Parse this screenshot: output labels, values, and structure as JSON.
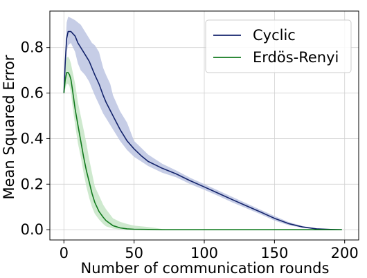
{
  "chart_data": {
    "type": "line",
    "xlabel": "Number of communication rounds",
    "ylabel": "Mean Squared Error",
    "xlim": [
      -10,
      210
    ],
    "ylim": [
      -0.045,
      0.96
    ],
    "xticks": [
      0,
      50,
      100,
      150,
      200
    ],
    "yticks": [
      0.0,
      0.2,
      0.4,
      0.6,
      0.8
    ],
    "xtick_labels": [
      "0",
      "50",
      "100",
      "150",
      "200"
    ],
    "ytick_labels": [
      "0.0",
      "0.2",
      "0.4",
      "0.6",
      "0.8"
    ],
    "grid": true,
    "legend_position": "top-right",
    "series": [
      {
        "name": "Cyclic",
        "color": "#13236b",
        "band_color": "#b8c0e0",
        "points": [
          [
            0,
            0.6
          ],
          [
            1,
            0.74
          ],
          [
            2,
            0.84
          ],
          [
            3,
            0.87
          ],
          [
            5,
            0.87
          ],
          [
            8,
            0.85
          ],
          [
            10,
            0.82
          ],
          [
            12,
            0.8
          ],
          [
            15,
            0.77
          ],
          [
            18,
            0.74
          ],
          [
            20,
            0.71
          ],
          [
            22,
            0.68
          ],
          [
            25,
            0.64
          ],
          [
            28,
            0.59
          ],
          [
            30,
            0.56
          ],
          [
            35,
            0.5
          ],
          [
            40,
            0.44
          ],
          [
            45,
            0.39
          ],
          [
            50,
            0.355
          ],
          [
            55,
            0.325
          ],
          [
            60,
            0.3
          ],
          [
            70,
            0.27
          ],
          [
            80,
            0.245
          ],
          [
            90,
            0.215
          ],
          [
            100,
            0.188
          ],
          [
            110,
            0.16
          ],
          [
            120,
            0.132
          ],
          [
            130,
            0.105
          ],
          [
            140,
            0.078
          ],
          [
            150,
            0.05
          ],
          [
            160,
            0.027
          ],
          [
            170,
            0.012
          ],
          [
            180,
            0.004
          ],
          [
            190,
            0.001
          ],
          [
            198,
            0.0
          ]
        ],
        "upper": [
          [
            0,
            0.6
          ],
          [
            1,
            0.8
          ],
          [
            2,
            0.91
          ],
          [
            3,
            0.935
          ],
          [
            5,
            0.93
          ],
          [
            8,
            0.92
          ],
          [
            10,
            0.91
          ],
          [
            12,
            0.9
          ],
          [
            15,
            0.87
          ],
          [
            18,
            0.84
          ],
          [
            20,
            0.82
          ],
          [
            22,
            0.81
          ],
          [
            25,
            0.78
          ],
          [
            28,
            0.71
          ],
          [
            30,
            0.68
          ],
          [
            33,
            0.64
          ],
          [
            35,
            0.59
          ],
          [
            40,
            0.52
          ],
          [
            45,
            0.47
          ],
          [
            50,
            0.39
          ],
          [
            55,
            0.36
          ],
          [
            60,
            0.33
          ],
          [
            70,
            0.29
          ],
          [
            80,
            0.26
          ],
          [
            90,
            0.228
          ],
          [
            100,
            0.2
          ],
          [
            110,
            0.172
          ],
          [
            120,
            0.144
          ],
          [
            130,
            0.116
          ],
          [
            140,
            0.088
          ],
          [
            150,
            0.06
          ],
          [
            160,
            0.034
          ],
          [
            170,
            0.016
          ],
          [
            180,
            0.006
          ],
          [
            190,
            0.002
          ],
          [
            198,
            0.0
          ]
        ],
        "lower": [
          [
            0,
            0.6
          ],
          [
            1,
            0.68
          ],
          [
            2,
            0.78
          ],
          [
            3,
            0.81
          ],
          [
            5,
            0.82
          ],
          [
            8,
            0.78
          ],
          [
            10,
            0.73
          ],
          [
            12,
            0.7
          ],
          [
            15,
            0.68
          ],
          [
            18,
            0.65
          ],
          [
            20,
            0.62
          ],
          [
            22,
            0.59
          ],
          [
            25,
            0.55
          ],
          [
            28,
            0.51
          ],
          [
            30,
            0.49
          ],
          [
            35,
            0.44
          ],
          [
            40,
            0.39
          ],
          [
            45,
            0.35
          ],
          [
            50,
            0.32
          ],
          [
            55,
            0.3
          ],
          [
            60,
            0.28
          ],
          [
            70,
            0.25
          ],
          [
            80,
            0.23
          ],
          [
            90,
            0.2
          ],
          [
            100,
            0.175
          ],
          [
            110,
            0.148
          ],
          [
            120,
            0.12
          ],
          [
            130,
            0.094
          ],
          [
            140,
            0.068
          ],
          [
            150,
            0.04
          ],
          [
            160,
            0.02
          ],
          [
            170,
            0.008
          ],
          [
            180,
            0.002
          ],
          [
            190,
            0.0
          ],
          [
            198,
            0.0
          ]
        ]
      },
      {
        "name": "Erdös-Renyi",
        "color": "#117a1d",
        "band_color": "#c2e3c2",
        "points": [
          [
            0,
            0.6
          ],
          [
            1,
            0.66
          ],
          [
            2,
            0.69
          ],
          [
            3,
            0.69
          ],
          [
            4,
            0.68
          ],
          [
            5,
            0.66
          ],
          [
            6,
            0.62
          ],
          [
            8,
            0.53
          ],
          [
            10,
            0.46
          ],
          [
            12,
            0.39
          ],
          [
            14,
            0.32
          ],
          [
            16,
            0.26
          ],
          [
            18,
            0.21
          ],
          [
            20,
            0.16
          ],
          [
            22,
            0.12
          ],
          [
            25,
            0.08
          ],
          [
            28,
            0.055
          ],
          [
            30,
            0.04
          ],
          [
            35,
            0.018
          ],
          [
            40,
            0.008
          ],
          [
            45,
            0.004
          ],
          [
            50,
            0.002
          ],
          [
            60,
            0.001
          ],
          [
            70,
            0.0
          ],
          [
            198,
            0.0
          ]
        ],
        "upper": [
          [
            0,
            0.6
          ],
          [
            1,
            0.72
          ],
          [
            2,
            0.755
          ],
          [
            3,
            0.76
          ],
          [
            4,
            0.75
          ],
          [
            5,
            0.73
          ],
          [
            6,
            0.7
          ],
          [
            8,
            0.64
          ],
          [
            10,
            0.56
          ],
          [
            12,
            0.5
          ],
          [
            14,
            0.44
          ],
          [
            16,
            0.38
          ],
          [
            18,
            0.31
          ],
          [
            20,
            0.25
          ],
          [
            22,
            0.19
          ],
          [
            25,
            0.15
          ],
          [
            28,
            0.11
          ],
          [
            30,
            0.09
          ],
          [
            35,
            0.05
          ],
          [
            40,
            0.035
          ],
          [
            45,
            0.025
          ],
          [
            50,
            0.018
          ],
          [
            55,
            0.015
          ],
          [
            60,
            0.012
          ],
          [
            65,
            0.008
          ],
          [
            70,
            0.003
          ],
          [
            80,
            0.0
          ],
          [
            198,
            0.0
          ]
        ],
        "lower": [
          [
            0,
            0.6
          ],
          [
            1,
            0.62
          ],
          [
            2,
            0.64
          ],
          [
            3,
            0.64
          ],
          [
            4,
            0.63
          ],
          [
            5,
            0.6
          ],
          [
            6,
            0.55
          ],
          [
            8,
            0.46
          ],
          [
            10,
            0.38
          ],
          [
            12,
            0.32
          ],
          [
            14,
            0.25
          ],
          [
            16,
            0.19
          ],
          [
            18,
            0.14
          ],
          [
            20,
            0.1
          ],
          [
            22,
            0.07
          ],
          [
            25,
            0.045
          ],
          [
            28,
            0.025
          ],
          [
            30,
            0.015
          ],
          [
            35,
            0.005
          ],
          [
            40,
            0.001
          ],
          [
            45,
            0.0
          ],
          [
            198,
            0.0
          ]
        ]
      }
    ]
  }
}
